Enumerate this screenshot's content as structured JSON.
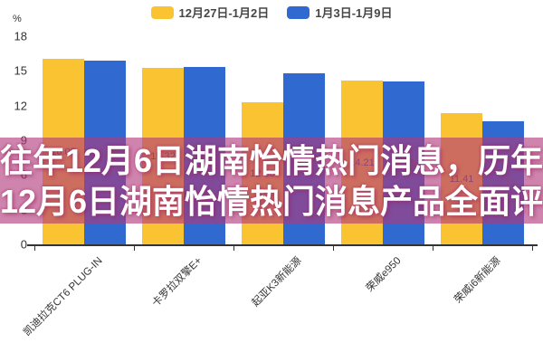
{
  "legend": {
    "items": [
      {
        "label": "12月27日-1月2日",
        "color": "#f9c332"
      },
      {
        "label": "1月3日-1月9日",
        "color": "#3069cf"
      }
    ]
  },
  "overlay": {
    "title_line1": "往年12月6日湖南怡情热门消息，历年",
    "title_line2": "12月6日湖南怡情热门消息产品全面评",
    "bg_color": "rgba(178,57,122,0.62)",
    "text_color": "#ffffff"
  },
  "chart_data": {
    "type": "bar",
    "title": "",
    "unit": "%",
    "xlabel": "",
    "ylabel": "%",
    "categories": [
      "凯迪拉克CT6 PLUG-IN",
      "卡罗拉双擎E+",
      "起亚K3新能源",
      "荣威e950",
      "荣威i6新能源"
    ],
    "series": [
      {
        "name": "12月27日-1月2日",
        "color": "#f9c332",
        "values": [
          16.09,
          15.32,
          12.38,
          14.21,
          11.41
        ]
      },
      {
        "name": "1月3日-1月9日",
        "color": "#3069cf",
        "values": [
          15.99,
          15.41,
          14.85,
          14.13,
          10.72
        ]
      }
    ],
    "value_labels_position": "inside-center",
    "ylim": [
      0,
      18
    ],
    "yticks": [
      0,
      3,
      6,
      9,
      12,
      15,
      18
    ],
    "legend_position": "top-center",
    "grid": false,
    "x_label_rotation": 45
  }
}
